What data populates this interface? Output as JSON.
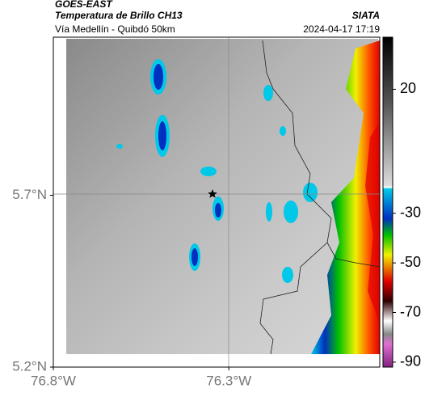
{
  "header": {
    "title": "GOES-EAST",
    "subtitle": "Temperatura de Brillo CH13",
    "agency": "SIATA",
    "route": "Vía Medellín - Quibdó 50km",
    "timestamp": "2024-04-17 17:19"
  },
  "map": {
    "lon_range": [
      -76.8,
      -75.87
    ],
    "lat_range": [
      5.2,
      6.16
    ],
    "lon_ticks": [
      {
        "value": -76.8,
        "label": "76.8°W"
      },
      {
        "value": -76.3,
        "label": "76.3°W"
      }
    ],
    "lat_ticks": [
      {
        "value": 5.7,
        "label": "5.7°N"
      },
      {
        "value": 5.2,
        "label": "5.2°N"
      }
    ]
  },
  "colorbar": {
    "range": [
      -92,
      41
    ],
    "ticks": [
      20,
      -30,
      -50,
      -70,
      -90
    ]
  }
}
